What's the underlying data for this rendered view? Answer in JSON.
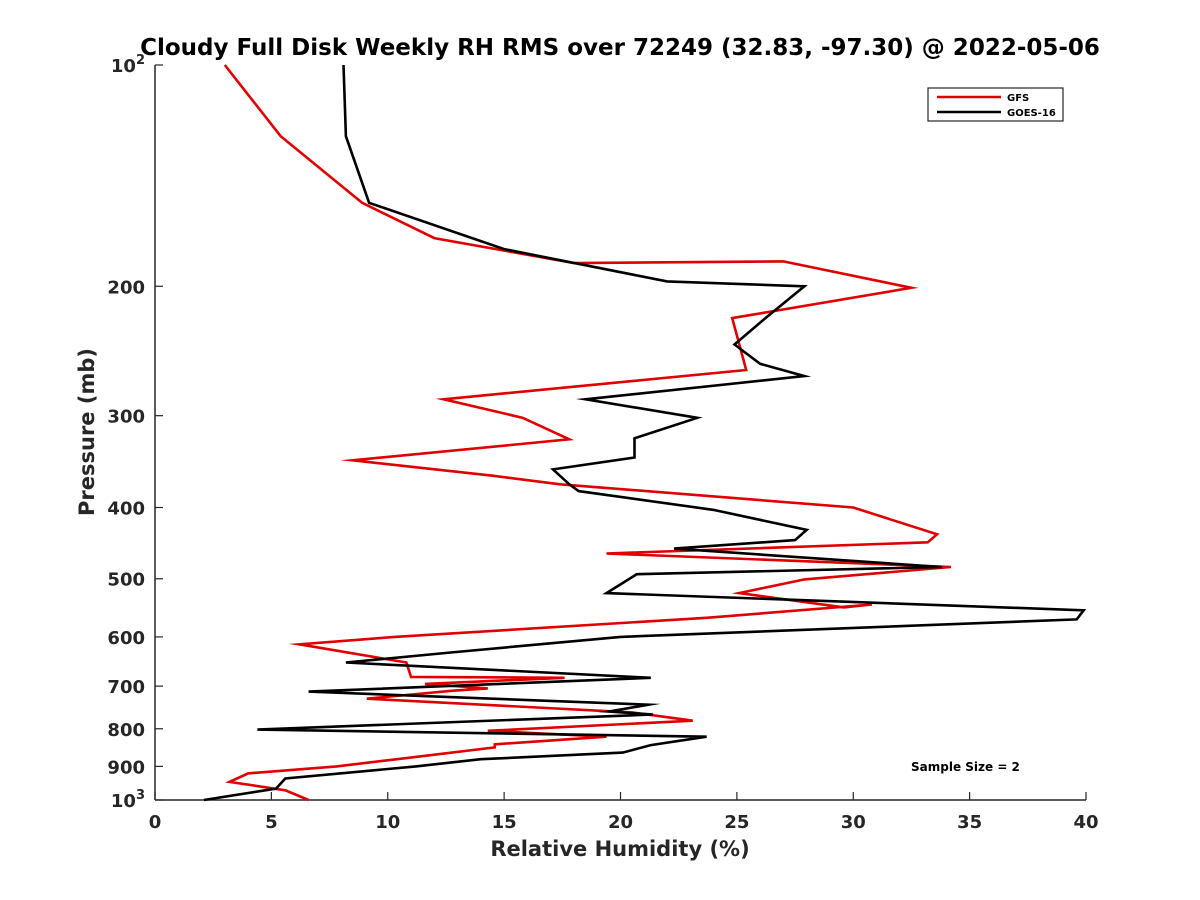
{
  "chart_data": {
    "type": "line",
    "title": "Cloudy Full Disk Weekly RH RMS over 72249 (32.83, -97.30) @ 2022-05-06",
    "xlabel": "Relative Humidity (%)",
    "ylabel": "Pressure (mb)",
    "xlim": [
      0,
      40
    ],
    "ylim": [
      100,
      1000
    ],
    "y_scale": "log",
    "y_reversed": true,
    "x_ticks": [
      "0",
      "5",
      "10",
      "15",
      "20",
      "25",
      "30",
      "35",
      "40"
    ],
    "y_ticks": [
      {
        "value": 100,
        "base": "10",
        "exp": "2"
      },
      {
        "value": 200,
        "label": "200"
      },
      {
        "value": 300,
        "label": "300"
      },
      {
        "value": 400,
        "label": "400"
      },
      {
        "value": 500,
        "label": "500"
      },
      {
        "value": 600,
        "label": "600"
      },
      {
        "value": 700,
        "label": "700"
      },
      {
        "value": 800,
        "label": "800"
      },
      {
        "value": 900,
        "label": "900"
      },
      {
        "value": 1000,
        "base": "10",
        "exp": "3"
      }
    ],
    "grid": false,
    "legend_position": "top-right",
    "annotation": "Sample Size = 2",
    "series": [
      {
        "name": "GFS",
        "color": "#e00000",
        "points": [
          [
            3.0,
            100
          ],
          [
            5.4,
            125
          ],
          [
            8.9,
            154
          ],
          [
            12.0,
            172
          ],
          [
            18.0,
            186
          ],
          [
            27.0,
            185
          ],
          [
            32.5,
            201
          ],
          [
            24.8,
            221
          ],
          [
            25.4,
            260
          ],
          [
            12.4,
            285
          ],
          [
            15.8,
            302
          ],
          [
            17.8,
            323
          ],
          [
            8.5,
            345
          ],
          [
            14.5,
            362
          ],
          [
            17.4,
            372
          ],
          [
            30.0,
            400
          ],
          [
            33.6,
            435
          ],
          [
            33.2,
            446
          ],
          [
            19.4,
            462
          ],
          [
            34.2,
            482
          ],
          [
            27.9,
            501
          ],
          [
            25.1,
            523
          ],
          [
            29.6,
            547
          ],
          [
            30.8,
            542
          ],
          [
            23.7,
            565
          ],
          [
            10.3,
            600
          ],
          [
            6.2,
            614
          ],
          [
            10.8,
            650
          ],
          [
            11.0,
            680
          ],
          [
            17.6,
            682
          ],
          [
            11.6,
            695
          ],
          [
            14.3,
            705
          ],
          [
            12.8,
            710
          ],
          [
            9.1,
            728
          ],
          [
            20.5,
            760
          ],
          [
            23.1,
            780
          ],
          [
            14.3,
            805
          ],
          [
            19.4,
            820
          ],
          [
            14.6,
            840
          ],
          [
            14.6,
            848
          ],
          [
            10.4,
            880
          ],
          [
            7.8,
            900
          ],
          [
            4.0,
            920
          ],
          [
            3.2,
            945
          ],
          [
            5.6,
            970
          ],
          [
            6.6,
            1000
          ]
        ]
      },
      {
        "name": "GOES-16",
        "color": "#000000",
        "points": [
          [
            8.1,
            100
          ],
          [
            8.2,
            125
          ],
          [
            9.2,
            154
          ],
          [
            15.0,
            178
          ],
          [
            22.0,
            197
          ],
          [
            27.9,
            200
          ],
          [
            26.3,
            220
          ],
          [
            24.9,
            240
          ],
          [
            26.0,
            255
          ],
          [
            27.9,
            265
          ],
          [
            18.5,
            285
          ],
          [
            23.3,
            302
          ],
          [
            20.6,
            322
          ],
          [
            20.6,
            342
          ],
          [
            17.1,
            355
          ],
          [
            17.8,
            372
          ],
          [
            18.2,
            380
          ],
          [
            24.0,
            403
          ],
          [
            28.0,
            429
          ],
          [
            27.5,
            443
          ],
          [
            22.3,
            455
          ],
          [
            33.8,
            482
          ],
          [
            20.7,
            493
          ],
          [
            19.4,
            523
          ],
          [
            39.9,
            552
          ],
          [
            39.6,
            568
          ],
          [
            20.0,
            600
          ],
          [
            12.7,
            630
          ],
          [
            8.2,
            650
          ],
          [
            21.3,
            682
          ],
          [
            6.6,
            712
          ],
          [
            21.2,
            742
          ],
          [
            19.5,
            758
          ],
          [
            21.4,
            765
          ],
          [
            4.4,
            802
          ],
          [
            23.7,
            820
          ],
          [
            21.3,
            842
          ],
          [
            20.1,
            862
          ],
          [
            14.0,
            880
          ],
          [
            11.2,
            900
          ],
          [
            5.6,
            935
          ],
          [
            5.2,
            965
          ],
          [
            2.1,
            1000
          ]
        ]
      }
    ]
  }
}
